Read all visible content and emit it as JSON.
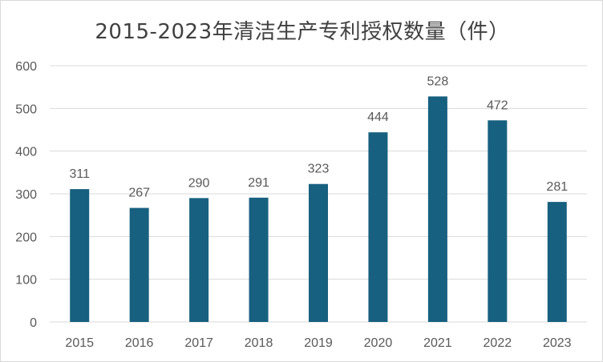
{
  "chart_data": {
    "type": "bar",
    "title": "2015-2023年清洁生产专利授权数量（件）",
    "xlabel": "",
    "ylabel": "",
    "categories": [
      "2015",
      "2016",
      "2017",
      "2018",
      "2019",
      "2020",
      "2021",
      "2022",
      "2023"
    ],
    "values": [
      311,
      267,
      290,
      291,
      323,
      444,
      528,
      472,
      281
    ],
    "data_labels": [
      "311",
      "267",
      "290",
      "291",
      "323",
      "444",
      "528",
      "472",
      "281"
    ],
    "ylim": [
      0,
      600
    ],
    "y_ticks": [
      "0",
      "100",
      "200",
      "300",
      "400",
      "500",
      "600"
    ],
    "grid": true,
    "legend": "none",
    "bar_color": "#17607f",
    "grid_color": "#d9d9d9",
    "text_color": "#595959"
  }
}
